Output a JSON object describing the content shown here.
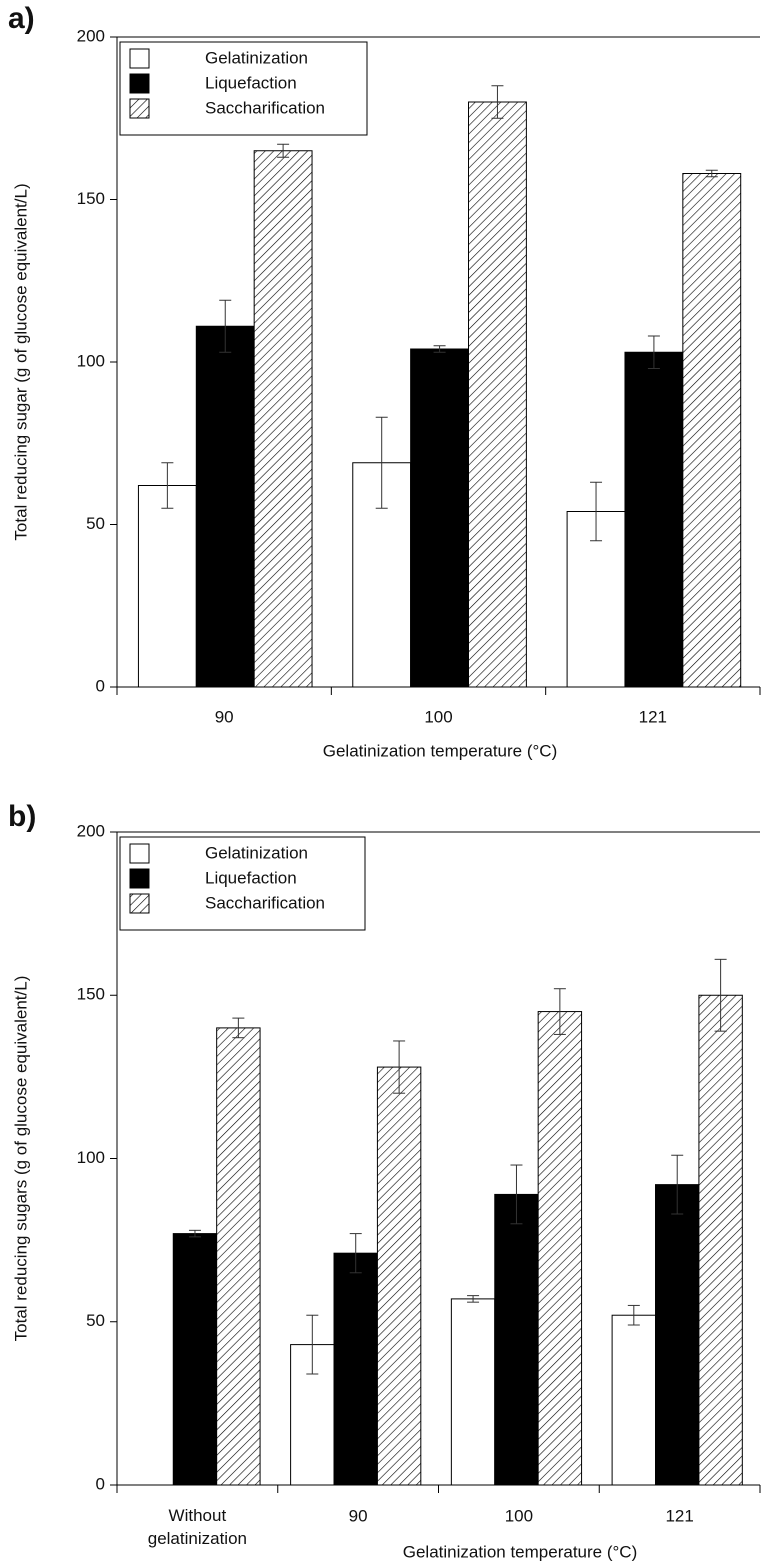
{
  "chart_data": [
    {
      "type": "bar",
      "panel_label": "a)",
      "y_label": "Total reducing sugar (g of glucose equivalent/L)",
      "x_label": "Gelatinization temperature (°C)",
      "categories": [
        "90",
        "100",
        "121"
      ],
      "series": [
        {
          "name": "Gelatinization",
          "color": "#ffffff",
          "hatch": false,
          "values": [
            62,
            69,
            54
          ],
          "errors": [
            7,
            14,
            9
          ]
        },
        {
          "name": "Liquefaction",
          "color": "#000000",
          "hatch": false,
          "values": [
            111,
            104,
            103
          ],
          "errors": [
            8,
            1,
            5
          ]
        },
        {
          "name": "Saccharification",
          "color": "#ffffff",
          "hatch": true,
          "values": [
            165,
            180,
            158
          ],
          "errors": [
            2,
            5,
            1
          ]
        }
      ],
      "ylim": [
        0,
        200
      ],
      "yticks": [
        0,
        50,
        100,
        150,
        200
      ],
      "legend": "upper left"
    },
    {
      "type": "bar",
      "panel_label": "b)",
      "y_label": "Total reducing sugars  (g of glucose equivalent/L)",
      "x_label": "Gelatinization temperature (°C)",
      "categories": [
        "Without gelatinization",
        "90",
        "100",
        "121"
      ],
      "series": [
        {
          "name": "Gelatinization",
          "color": "#ffffff",
          "hatch": false,
          "values": [
            null,
            43,
            57,
            52
          ],
          "errors": [
            null,
            9,
            1,
            3
          ]
        },
        {
          "name": "Liquefaction",
          "color": "#000000",
          "hatch": false,
          "values": [
            77,
            71,
            89,
            92
          ],
          "errors": [
            1,
            6,
            9,
            9
          ]
        },
        {
          "name": "Saccharification",
          "color": "#ffffff",
          "hatch": true,
          "values": [
            140,
            128,
            145,
            150
          ],
          "errors": [
            3,
            8,
            7,
            11
          ]
        }
      ],
      "ylim": [
        0,
        200
      ],
      "yticks": [
        0,
        50,
        100,
        150,
        200
      ],
      "legend": "upper left"
    }
  ]
}
